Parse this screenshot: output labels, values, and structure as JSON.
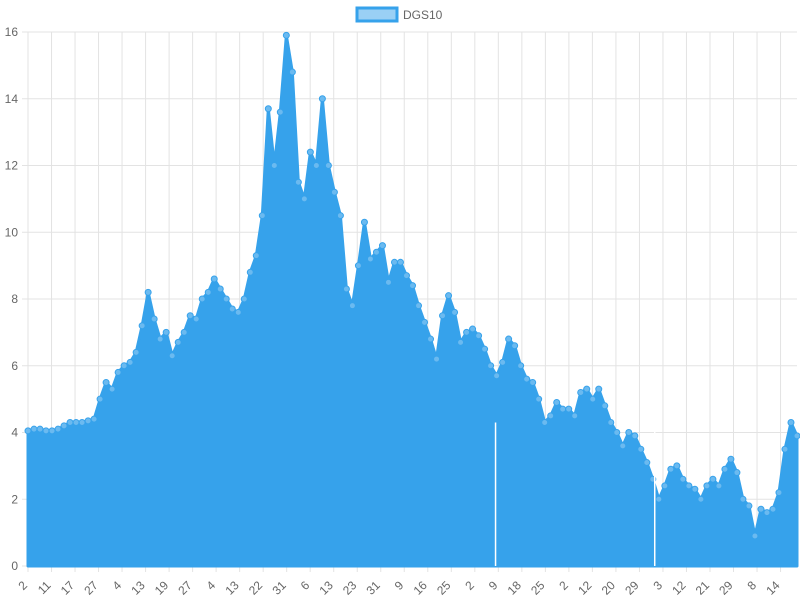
{
  "chart_data": {
    "type": "area",
    "legend": {
      "label": "DGS10",
      "position": "top",
      "fill": "#9ad0f5",
      "border": "#36a2eb"
    },
    "series_color": "#36a2eb",
    "ylim": [
      0,
      16
    ],
    "y_ticks": [
      0,
      2,
      4,
      6,
      8,
      10,
      12,
      14,
      16
    ],
    "x_tick_labels": [
      "2",
      "11",
      "17",
      "27",
      "4",
      "13",
      "19",
      "27",
      "4",
      "13",
      "22",
      "31",
      "6",
      "13",
      "23",
      "31",
      "9",
      "16",
      "25",
      "2",
      "9",
      "18",
      "25",
      "2",
      "12",
      "20",
      "29",
      "3",
      "12",
      "21",
      "29",
      "8",
      "14"
    ],
    "grid": true,
    "series": [
      {
        "values": [
          4.05,
          4.1,
          4.1,
          4.05,
          4.05,
          4.1,
          4.2,
          4.3,
          4.3,
          4.3,
          4.35,
          4.4,
          5.0,
          5.5,
          5.3,
          5.8,
          6.0,
          6.1,
          6.4,
          7.2,
          8.2,
          7.4,
          6.8,
          7.0,
          6.3,
          6.7,
          7.0,
          7.5,
          7.4,
          8.0,
          8.2,
          8.6,
          8.3,
          8.0,
          7.7,
          7.6,
          8.0,
          8.8,
          9.3,
          10.5,
          13.7,
          12.0,
          13.6,
          15.9,
          14.8,
          11.5,
          11.0,
          12.4,
          12.0,
          14.0,
          12.0,
          11.2,
          10.5,
          8.3,
          7.8,
          9.0,
          10.3,
          9.2,
          9.4,
          9.6,
          8.5,
          9.1,
          9.1,
          8.7,
          8.4,
          7.8,
          7.3,
          6.8,
          6.2,
          7.5,
          8.1,
          7.6,
          6.7,
          7.0,
          7.1,
          6.9,
          6.5,
          6.0,
          5.7,
          6.1,
          6.8,
          6.6,
          6.0,
          5.6,
          5.5,
          5.0,
          4.3,
          4.5,
          4.9,
          4.7,
          4.7,
          4.5,
          5.2,
          5.3,
          5.0,
          5.3,
          4.8,
          4.3,
          4.0,
          3.6,
          4.0,
          3.9,
          3.5,
          3.1,
          2.6,
          2.0,
          2.4,
          2.9,
          3.0,
          2.6,
          2.4,
          2.3,
          2.0,
          2.4,
          2.6,
          2.4,
          2.9,
          3.2,
          2.8,
          2.0,
          1.8,
          0.9,
          1.7,
          1.6,
          1.7,
          2.2,
          3.5,
          4.3,
          3.9
        ]
      }
    ]
  }
}
